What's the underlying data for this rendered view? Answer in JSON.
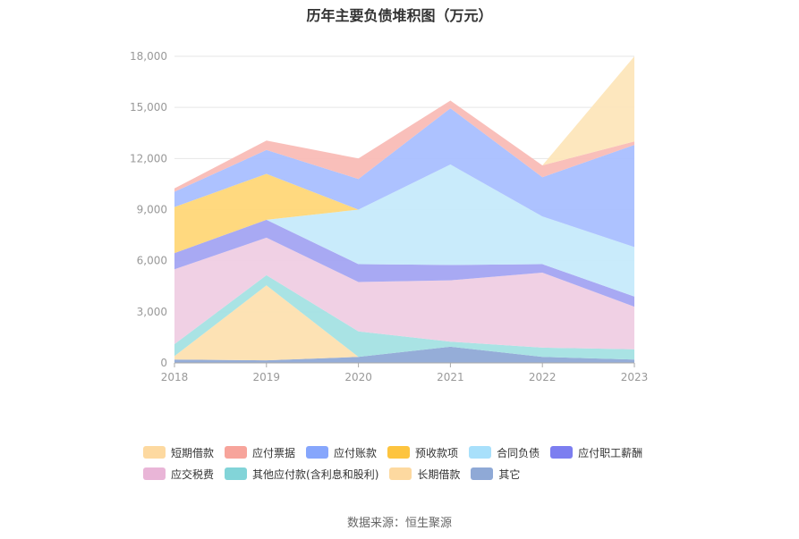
{
  "chart_data": {
    "type": "area",
    "stacked": true,
    "title": "历年主要负债堆积图（万元）",
    "x": [
      "2018",
      "2019",
      "2020",
      "2021",
      "2022",
      "2023"
    ],
    "yticks": [
      "0",
      "3,000",
      "6,000",
      "9,000",
      "12,000",
      "15,000",
      "18,000"
    ],
    "ylim": [
      0,
      18000
    ],
    "grid": true,
    "legend_position": "bottom",
    "series": [
      {
        "name": "其它",
        "color": "#8fa9d6",
        "values": [
          200,
          150,
          350,
          950,
          350,
          200
        ]
      },
      {
        "name": "长期借款",
        "color": "#fde0b0",
        "values": [
          200,
          4400,
          0,
          0,
          0,
          0
        ]
      },
      {
        "name": "其他应付款(含利息和股利)",
        "color": "#a4e1e3",
        "values": [
          700,
          600,
          1500,
          300,
          550,
          600
        ]
      },
      {
        "name": "应交税费",
        "color": "#efcde3",
        "values": [
          4400,
          2200,
          2900,
          3600,
          4400,
          2500
        ]
      },
      {
        "name": "应付职工薪酬",
        "color": "#a3a4f2",
        "values": [
          950,
          1050,
          1050,
          900,
          500,
          600
        ]
      },
      {
        "name": "合同负债",
        "color": "#c6eafb",
        "values": [
          0,
          0,
          3200,
          5900,
          2800,
          2900
        ]
      },
      {
        "name": "预收款项",
        "color": "#ffd778",
        "values": [
          2700,
          2700,
          0,
          0,
          0,
          0
        ]
      },
      {
        "name": "应付账款",
        "color": "#a9bfff",
        "values": [
          900,
          1400,
          1800,
          3300,
          2300,
          6000
        ]
      },
      {
        "name": "应付票据",
        "color": "#f9bcb6",
        "values": [
          200,
          550,
          1200,
          450,
          700,
          200
        ]
      },
      {
        "name": "短期借款",
        "color": "#fde6bb",
        "values": [
          0,
          0,
          0,
          0,
          0,
          5000
        ]
      }
    ],
    "legend": [
      {
        "name": "短期借款",
        "color": "#fdd9a0"
      },
      {
        "name": "应付票据",
        "color": "#f7a49b"
      },
      {
        "name": "应付账款",
        "color": "#86a6fc"
      },
      {
        "name": "预收款项",
        "color": "#fdc43f"
      },
      {
        "name": "合同负债",
        "color": "#a8e0fb"
      },
      {
        "name": "应付职工薪酬",
        "color": "#7c7ef0"
      },
      {
        "name": "应交税费",
        "color": "#e9b5d7"
      },
      {
        "name": "其他应付款(含利息和股利)",
        "color": "#82d4d8"
      },
      {
        "name": "长期借款",
        "color": "#fdd9a0"
      },
      {
        "name": "其它",
        "color": "#8fa9d6"
      }
    ]
  },
  "source": "数据来源：恒生聚源"
}
